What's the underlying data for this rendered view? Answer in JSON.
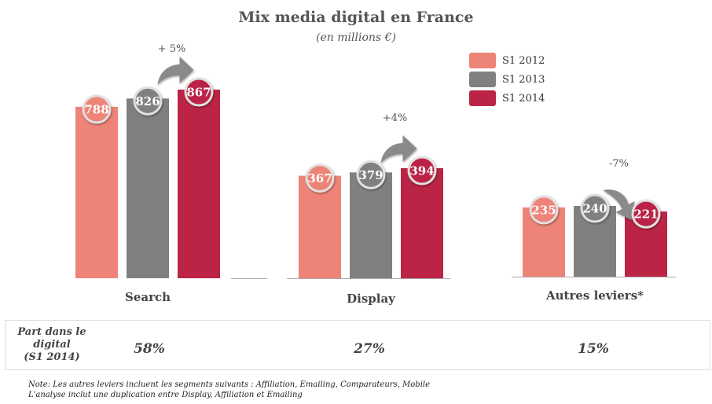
{
  "chart_data": {
    "type": "bar",
    "title": "Mix media digital en France",
    "subtitle": "(en millions €)",
    "categories": [
      "Search",
      "Display",
      "Autres leviers*"
    ],
    "series": [
      {
        "name": "S1 2012",
        "color": "#ee8378",
        "values": [
          788,
          367,
          235
        ]
      },
      {
        "name": "S1 2013",
        "color": "#808080",
        "values": [
          826,
          379,
          240
        ]
      },
      {
        "name": "S1 2014",
        "color": "#bb2445",
        "values": [
          867,
          394,
          221
        ]
      }
    ],
    "growth_labels": [
      "+ 5%",
      "+4%",
      "-7%"
    ],
    "legend_position": "top-right",
    "grid": false
  },
  "share": {
    "label_lines": [
      "Part dans le",
      "digital",
      "(S1 2014)"
    ],
    "values": [
      "58%",
      "27%",
      "15%"
    ]
  },
  "notes": [
    "Note: Les autres leviers incluent les segments suivants : Affiliation, Emailing, Comparateurs, Mobile",
    "L'analyse inclut une duplication entre Display, Affiliation et Emailing"
  ],
  "colors": {
    "arrow": "#8a8a8a",
    "circle_border": "#e0e0e0",
    "baseline": "#aaaaaa"
  }
}
